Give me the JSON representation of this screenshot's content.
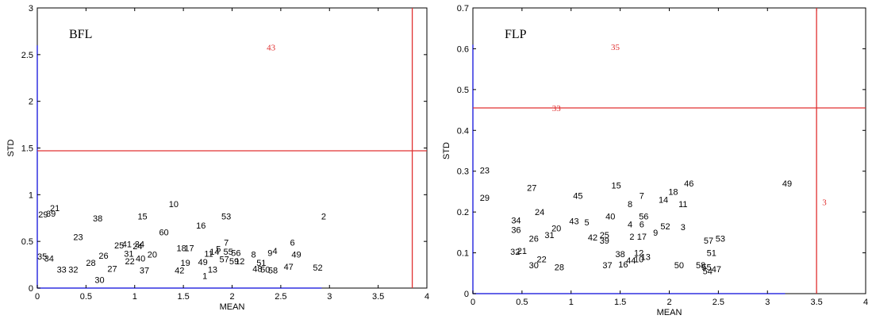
{
  "chart_data": [
    {
      "type": "scatter",
      "title": "BFL",
      "xlabel": "MEAN",
      "ylabel": "STD",
      "xlim": [
        0,
        4
      ],
      "ylim": [
        0,
        3
      ],
      "xticks": [
        "0",
        "0.5",
        "1",
        "1.5",
        "2",
        "2.5",
        "3",
        "3.5",
        "4"
      ],
      "yticks": [
        "0",
        "0.5",
        "1",
        "1.5",
        "2",
        "2.5",
        "3"
      ],
      "threshold_lines": {
        "vertical": 3.85,
        "horizontal": 1.47,
        "color": "#e03030"
      },
      "axis_color": "#3030e0",
      "points": [
        {
          "label": "43",
          "x": 2.4,
          "y": 2.58,
          "outlier": true
        },
        {
          "label": "21",
          "x": 0.18,
          "y": 0.86
        },
        {
          "label": "29",
          "x": 0.06,
          "y": 0.79
        },
        {
          "label": "39",
          "x": 0.14,
          "y": 0.8
        },
        {
          "label": "10",
          "x": 1.4,
          "y": 0.9
        },
        {
          "label": "38",
          "x": 0.62,
          "y": 0.75
        },
        {
          "label": "15",
          "x": 1.08,
          "y": 0.77
        },
        {
          "label": "16",
          "x": 1.68,
          "y": 0.67
        },
        {
          "label": "53",
          "x": 1.94,
          "y": 0.77
        },
        {
          "label": "2",
          "x": 2.94,
          "y": 0.77
        },
        {
          "label": "60",
          "x": 1.3,
          "y": 0.6
        },
        {
          "label": "23",
          "x": 0.42,
          "y": 0.55
        },
        {
          "label": "25",
          "x": 0.84,
          "y": 0.46
        },
        {
          "label": "41",
          "x": 0.92,
          "y": 0.47
        },
        {
          "label": "34",
          "x": 1.05,
          "y": 0.47
        },
        {
          "label": "24",
          "x": 1.03,
          "y": 0.45
        },
        {
          "label": "18",
          "x": 1.48,
          "y": 0.43
        },
        {
          "label": "17",
          "x": 1.56,
          "y": 0.43
        },
        {
          "label": "7",
          "x": 1.94,
          "y": 0.49
        },
        {
          "label": "6",
          "x": 2.62,
          "y": 0.49
        },
        {
          "label": "5",
          "x": 1.86,
          "y": 0.42
        },
        {
          "label": "4",
          "x": 2.44,
          "y": 0.4
        },
        {
          "label": "9",
          "x": 2.39,
          "y": 0.38
        },
        {
          "label": "35",
          "x": 0.05,
          "y": 0.34
        },
        {
          "label": "34",
          "x": 0.12,
          "y": 0.32
        },
        {
          "label": "26",
          "x": 0.68,
          "y": 0.35
        },
        {
          "label": "31",
          "x": 0.94,
          "y": 0.37
        },
        {
          "label": "20",
          "x": 1.18,
          "y": 0.36
        },
        {
          "label": "40",
          "x": 1.06,
          "y": 0.32
        },
        {
          "label": "22",
          "x": 0.95,
          "y": 0.29
        },
        {
          "label": "11",
          "x": 1.76,
          "y": 0.37
        },
        {
          "label": "14",
          "x": 1.82,
          "y": 0.39
        },
        {
          "label": "55",
          "x": 1.96,
          "y": 0.39
        },
        {
          "label": "56",
          "x": 2.04,
          "y": 0.38
        },
        {
          "label": "8",
          "x": 2.22,
          "y": 0.36
        },
        {
          "label": "49",
          "x": 2.66,
          "y": 0.36
        },
        {
          "label": "57",
          "x": 1.92,
          "y": 0.31
        },
        {
          "label": "59",
          "x": 2.02,
          "y": 0.29
        },
        {
          "label": "12",
          "x": 2.08,
          "y": 0.29
        },
        {
          "label": "51",
          "x": 2.3,
          "y": 0.27
        },
        {
          "label": "28",
          "x": 0.55,
          "y": 0.27
        },
        {
          "label": "19",
          "x": 1.52,
          "y": 0.27
        },
        {
          "label": "49",
          "x": 1.7,
          "y": 0.28
        },
        {
          "label": "33",
          "x": 0.25,
          "y": 0.2
        },
        {
          "label": "32",
          "x": 0.37,
          "y": 0.2
        },
        {
          "label": "27",
          "x": 0.77,
          "y": 0.21
        },
        {
          "label": "37",
          "x": 1.1,
          "y": 0.19
        },
        {
          "label": "42",
          "x": 1.46,
          "y": 0.19
        },
        {
          "label": "13",
          "x": 1.8,
          "y": 0.2
        },
        {
          "label": "48",
          "x": 2.26,
          "y": 0.21
        },
        {
          "label": "50",
          "x": 2.34,
          "y": 0.2
        },
        {
          "label": "58",
          "x": 2.42,
          "y": 0.19
        },
        {
          "label": "47",
          "x": 2.58,
          "y": 0.23
        },
        {
          "label": "52",
          "x": 2.88,
          "y": 0.22
        },
        {
          "label": "1",
          "x": 1.72,
          "y": 0.13
        },
        {
          "label": "30",
          "x": 0.64,
          "y": 0.09
        }
      ]
    },
    {
      "type": "scatter",
      "title": "FLP",
      "xlabel": "MEAN",
      "ylabel": "STD",
      "xlim": [
        0,
        4
      ],
      "ylim": [
        0,
        0.7
      ],
      "xticks": [
        "0",
        "0.5",
        "1",
        "1.5",
        "2",
        "2.5",
        "3",
        "3.5",
        "4"
      ],
      "yticks": [
        "0",
        "0.1",
        "0.2",
        "0.3",
        "0.4",
        "0.5",
        "0.6",
        "0.7"
      ],
      "threshold_lines": {
        "vertical": 3.5,
        "horizontal": 0.455,
        "color": "#e03030"
      },
      "axis_color": "#3030e0",
      "points": [
        {
          "label": "35",
          "x": 1.45,
          "y": 0.605,
          "outlier": true
        },
        {
          "label": "33",
          "x": 0.85,
          "y": 0.455,
          "outlier": true
        },
        {
          "label": "3",
          "x": 3.58,
          "y": 0.225,
          "outlier": true
        },
        {
          "label": "23",
          "x": 0.12,
          "y": 0.302
        },
        {
          "label": "27",
          "x": 0.6,
          "y": 0.26
        },
        {
          "label": "29",
          "x": 0.12,
          "y": 0.235
        },
        {
          "label": "45",
          "x": 1.07,
          "y": 0.24
        },
        {
          "label": "15",
          "x": 1.46,
          "y": 0.265
        },
        {
          "label": "7",
          "x": 1.72,
          "y": 0.24
        },
        {
          "label": "46",
          "x": 2.2,
          "y": 0.27
        },
        {
          "label": "18",
          "x": 2.04,
          "y": 0.25
        },
        {
          "label": "49",
          "x": 3.2,
          "y": 0.27
        },
        {
          "label": "14",
          "x": 1.94,
          "y": 0.23
        },
        {
          "label": "11",
          "x": 2.14,
          "y": 0.22
        },
        {
          "label": "8",
          "x": 1.6,
          "y": 0.22
        },
        {
          "label": "24",
          "x": 0.68,
          "y": 0.2
        },
        {
          "label": "40",
          "x": 1.4,
          "y": 0.19
        },
        {
          "label": "56",
          "x": 1.74,
          "y": 0.19
        },
        {
          "label": "34",
          "x": 0.44,
          "y": 0.18
        },
        {
          "label": "43",
          "x": 1.03,
          "y": 0.178
        },
        {
          "label": "5",
          "x": 1.16,
          "y": 0.175
        },
        {
          "label": "4",
          "x": 1.6,
          "y": 0.17
        },
        {
          "label": "6",
          "x": 1.72,
          "y": 0.17
        },
        {
          "label": "52",
          "x": 1.96,
          "y": 0.165
        },
        {
          "label": "3",
          "x": 2.14,
          "y": 0.163
        },
        {
          "label": "20",
          "x": 0.85,
          "y": 0.16
        },
        {
          "label": "36",
          "x": 0.44,
          "y": 0.157
        },
        {
          "label": "9",
          "x": 1.86,
          "y": 0.15
        },
        {
          "label": "31",
          "x": 0.78,
          "y": 0.144
        },
        {
          "label": "26",
          "x": 0.62,
          "y": 0.135
        },
        {
          "label": "42",
          "x": 1.22,
          "y": 0.138
        },
        {
          "label": "25",
          "x": 1.34,
          "y": 0.144
        },
        {
          "label": "39",
          "x": 1.34,
          "y": 0.13
        },
        {
          "label": "2",
          "x": 1.62,
          "y": 0.14
        },
        {
          "label": "17",
          "x": 1.72,
          "y": 0.14
        },
        {
          "label": "57",
          "x": 2.4,
          "y": 0.13
        },
        {
          "label": "53",
          "x": 2.52,
          "y": 0.135
        },
        {
          "label": "32",
          "x": 0.43,
          "y": 0.103
        },
        {
          "label": "21",
          "x": 0.5,
          "y": 0.105
        },
        {
          "label": "12",
          "x": 1.69,
          "y": 0.1
        },
        {
          "label": "51",
          "x": 2.43,
          "y": 0.1
        },
        {
          "label": "38",
          "x": 1.5,
          "y": 0.097
        },
        {
          "label": "22",
          "x": 0.7,
          "y": 0.085
        },
        {
          "label": "10",
          "x": 1.69,
          "y": 0.085
        },
        {
          "label": "13",
          "x": 1.76,
          "y": 0.09
        },
        {
          "label": "44",
          "x": 1.61,
          "y": 0.082
        },
        {
          "label": "30",
          "x": 0.62,
          "y": 0.07
        },
        {
          "label": "28",
          "x": 0.88,
          "y": 0.065
        },
        {
          "label": "37",
          "x": 1.37,
          "y": 0.07
        },
        {
          "label": "16",
          "x": 1.53,
          "y": 0.072
        },
        {
          "label": "50",
          "x": 2.1,
          "y": 0.07
        },
        {
          "label": "58",
          "x": 2.32,
          "y": 0.07
        },
        {
          "label": "55",
          "x": 2.38,
          "y": 0.065
        },
        {
          "label": "54",
          "x": 2.39,
          "y": 0.055
        },
        {
          "label": "47",
          "x": 2.48,
          "y": 0.06
        }
      ]
    }
  ]
}
